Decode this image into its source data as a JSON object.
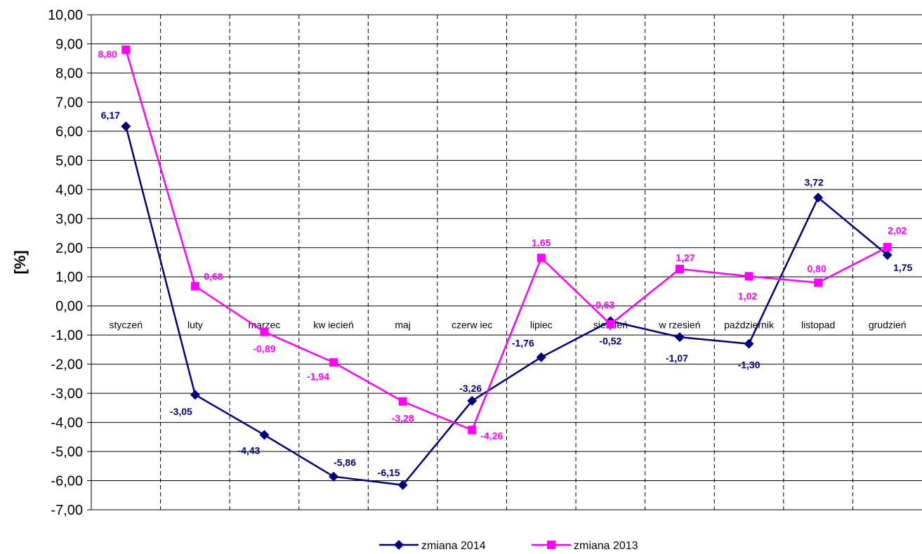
{
  "chart_data": {
    "type": "line",
    "categories": [
      "styczeń",
      "luty",
      "marzec",
      "kw iecień",
      "maj",
      "czerw iec",
      "lipiec",
      "sierpień",
      "w rzesień",
      "październik",
      "listopad",
      "grudzień"
    ],
    "ylabel": "[%]",
    "xlabel": "",
    "title": "",
    "ylim": [
      -7,
      10
    ],
    "ytick_step": 1,
    "ytick_labels": [
      "10,00",
      "9,00",
      "8,00",
      "7,00",
      "6,00",
      "5,00",
      "4,00",
      "3,00",
      "2,00",
      "1,00",
      "0,00",
      "-1,00",
      "-2,00",
      "-3,00",
      "-4,00",
      "-5,00",
      "-6,00",
      "-7,00"
    ],
    "grid": "horizontal solid, vertical dashed",
    "legend_position": "bottom",
    "series": [
      {
        "name": "zmiana 2014",
        "color": "#000080",
        "marker": "diamond",
        "values": [
          6.17,
          -3.05,
          -4.43,
          -5.86,
          -6.15,
          -3.26,
          -1.76,
          -0.52,
          -1.07,
          -1.3,
          3.72,
          1.75
        ],
        "labels": [
          "6,17",
          "-3,05",
          "-4,43",
          "-5,86",
          "-6,15",
          "-3,26",
          "-1,76",
          "-0,52",
          "-1,07",
          "-1,30",
          "3,72",
          "1,75"
        ]
      },
      {
        "name": "zmiana 2013",
        "color": "#FF00FF",
        "marker": "square",
        "values": [
          8.8,
          0.68,
          -0.89,
          -1.94,
          -3.28,
          -4.26,
          1.65,
          -0.63,
          1.27,
          1.02,
          0.8,
          2.02
        ],
        "labels": [
          "8,80",
          "0,68",
          "-0,89",
          "-1,94",
          "-3,28",
          "-4,26",
          "1,65",
          "-0,63",
          "1,27",
          "1,02",
          "0,80",
          "2,02"
        ]
      }
    ]
  }
}
